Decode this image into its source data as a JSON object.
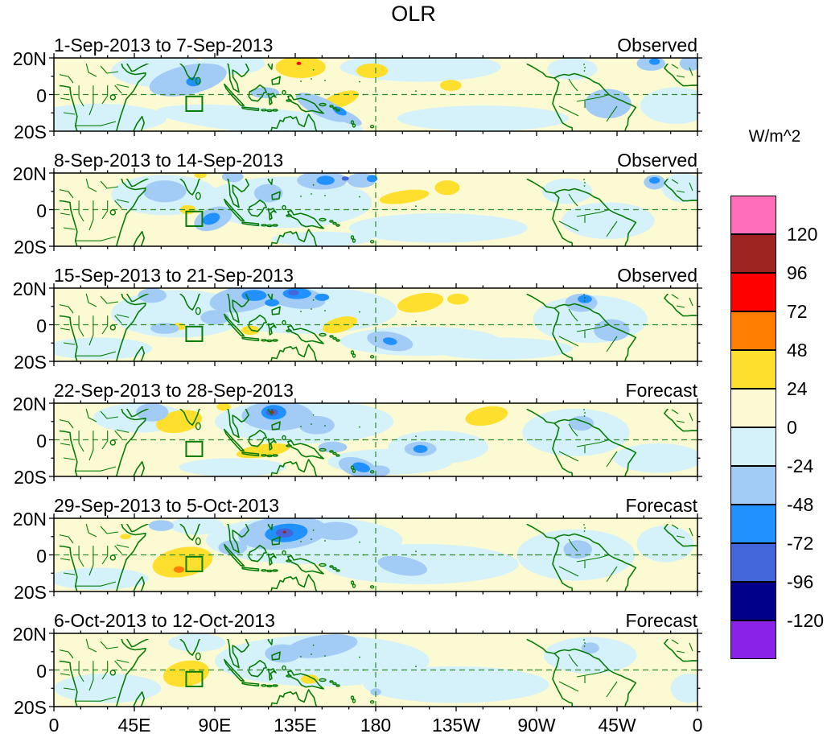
{
  "title": "OLR",
  "chart_data": {
    "type": "heatmap",
    "title": "OLR",
    "units": "W/m^2",
    "x_axis": {
      "ticks": [
        "0",
        "45E",
        "90E",
        "135E",
        "180",
        "135W",
        "90W",
        "45W",
        "0"
      ],
      "range_deg": [
        0,
        360
      ]
    },
    "y_axis": {
      "ticks": [
        "20N",
        "0",
        "20S"
      ],
      "range_deg": [
        20,
        -20
      ]
    },
    "colorbar": {
      "units": "W/m^2",
      "tick_labels": [
        "120",
        "96",
        "72",
        "48",
        "24",
        "0",
        "-24",
        "-48",
        "-72",
        "-96",
        "-120"
      ],
      "colors_top_to_bottom": [
        "#FF6EB8",
        "#9E2421",
        "#FF0000",
        "#FF7D00",
        "#FFDF2E",
        "#FBFAD2",
        "#D5F2FB",
        "#A2CBF6",
        "#2191FF",
        "#4366DB",
        "#00008B",
        "#8A22E8"
      ]
    },
    "level_colors": {
      "base": "#FBFAD2",
      "-1": "#D5F2FB",
      "-2": "#A2CBF6",
      "-3": "#2191FF",
      "-4": "#4366DB",
      "-5": "#00008B",
      "1": "#FFDF2E",
      "2": "#FF7D00",
      "3": "#FF0000",
      "4": "#9E2421"
    },
    "map_style": {
      "coastline_color": "#077c07",
      "gridline_color": "#2e8b2e"
    },
    "target_box": {
      "lon_min": 74,
      "lon_max": 83,
      "lat_min": -9,
      "lat_max": -1
    },
    "panels": [
      {
        "date_range": "1-Sep-2013 to 7-Sep-2013",
        "status": "Observed",
        "anomalies": [
          [
            25,
            -13,
            38,
            8,
            -1,
            0
          ],
          [
            115,
            -14,
            58,
            7,
            -1,
            5
          ],
          [
            240,
            -13,
            48,
            7,
            -1,
            0
          ],
          [
            205,
            15,
            45,
            8,
            -1,
            0
          ],
          [
            348,
            -6,
            20,
            10,
            -1,
            0
          ],
          [
            60,
            13,
            28,
            9,
            -1,
            0
          ],
          [
            100,
            17,
            18,
            6,
            -1,
            0
          ],
          [
            290,
            14,
            14,
            6,
            -1,
            0
          ],
          [
            138,
            15,
            14,
            6,
            1,
            0
          ],
          [
            160,
            -3,
            11,
            4,
            1,
            -20
          ],
          [
            178,
            13,
            9,
            4,
            1,
            0
          ],
          [
            222,
            5,
            6,
            3,
            1,
            0
          ],
          [
            75,
            8,
            22,
            8,
            -2,
            -12
          ],
          [
            150,
            -7,
            16,
            5,
            -2,
            25
          ],
          [
            163,
            -12,
            10,
            3,
            -2,
            25
          ],
          [
            310,
            -5,
            13,
            8,
            -2,
            0
          ],
          [
            334,
            17,
            8,
            4,
            -2,
            0
          ],
          [
            118,
            1,
            8,
            3,
            -2,
            0
          ],
          [
            356,
            17,
            6,
            4,
            -2,
            0
          ],
          [
            78,
            7,
            4,
            2.5,
            -3,
            0
          ],
          [
            160,
            -9,
            4,
            2,
            -3,
            25
          ],
          [
            336,
            18,
            3,
            1.8,
            -3,
            0
          ],
          [
            137,
            17,
            1.3,
            0.9,
            3,
            0
          ]
        ]
      },
      {
        "date_range": "8-Sep-2013 to 14-Sep-2013",
        "status": "Observed",
        "anomalies": [
          [
            62,
            8,
            30,
            11,
            -1,
            0
          ],
          [
            130,
            4,
            48,
            14,
            -1,
            0
          ],
          [
            215,
            -10,
            50,
            8,
            -1,
            0
          ],
          [
            310,
            -6,
            26,
            10,
            -1,
            0
          ],
          [
            352,
            12,
            12,
            8,
            -1,
            0
          ],
          [
            150,
            -16,
            28,
            4,
            -1,
            0
          ],
          [
            287,
            10,
            14,
            7,
            -1,
            0
          ],
          [
            75,
            0,
            4.5,
            2.5,
            1,
            0
          ],
          [
            196,
            7,
            14,
            3.5,
            1,
            -8
          ],
          [
            220,
            12,
            7,
            4,
            1,
            0
          ],
          [
            82,
            19,
            3.5,
            1.8,
            1,
            0
          ],
          [
            89,
            -5,
            11,
            6,
            -2,
            -20
          ],
          [
            62,
            10,
            12,
            6,
            -2,
            0
          ],
          [
            150,
            16,
            14,
            5,
            -2,
            0
          ],
          [
            172,
            16,
            8,
            4,
            -2,
            0
          ],
          [
            120,
            9,
            8,
            5,
            -2,
            0
          ],
          [
            336,
            15,
            6,
            4,
            -2,
            0
          ],
          [
            100,
            18,
            6,
            3,
            -2,
            0
          ],
          [
            88,
            -5,
            5,
            3,
            -3,
            -20
          ],
          [
            152,
            16,
            5,
            2.5,
            -3,
            0
          ],
          [
            178,
            17,
            3,
            2,
            -3,
            0
          ],
          [
            336,
            16,
            3,
            1.8,
            -3,
            0
          ],
          [
            163,
            17,
            2,
            1.2,
            -4,
            0
          ]
        ]
      },
      {
        "date_range": "15-Sep-2013 to 21-Sep-2013",
        "status": "Observed",
        "anomalies": [
          [
            70,
            6,
            38,
            13,
            -1,
            0
          ],
          [
            140,
            8,
            52,
            13,
            -1,
            0
          ],
          [
            205,
            -9,
            45,
            8,
            -1,
            0
          ],
          [
            300,
            3,
            32,
            13,
            -1,
            0
          ],
          [
            25,
            -13,
            30,
            6,
            -1,
            0
          ],
          [
            250,
            -13,
            40,
            6,
            -1,
            0
          ],
          [
            160,
            0,
            10,
            4,
            1,
            -15
          ],
          [
            205,
            12,
            13,
            5,
            1,
            -10
          ],
          [
            226,
            14,
            6,
            3,
            1,
            0
          ],
          [
            70,
            -1,
            4,
            2,
            1,
            0
          ],
          [
            110,
            -3,
            5,
            2.5,
            1,
            0
          ],
          [
            105,
            14,
            18,
            7,
            -2,
            -8
          ],
          [
            135,
            15,
            17,
            6,
            -2,
            8
          ],
          [
            90,
            4,
            8,
            4,
            -2,
            0
          ],
          [
            62,
            -2,
            8,
            3,
            -2,
            0
          ],
          [
            188,
            -9,
            13,
            5,
            -2,
            10
          ],
          [
            295,
            12,
            9,
            5,
            -2,
            0
          ],
          [
            312,
            -3,
            10,
            6,
            -2,
            0
          ],
          [
            55,
            16,
            8,
            4,
            -2,
            0
          ],
          [
            112,
            16,
            7,
            3,
            -3,
            0
          ],
          [
            136,
            17,
            8,
            3,
            -3,
            0
          ],
          [
            122,
            12,
            4,
            2,
            -3,
            0
          ],
          [
            150,
            15,
            4,
            2,
            -3,
            0
          ],
          [
            188,
            -9,
            4,
            2,
            -3,
            10
          ],
          [
            297,
            14,
            4,
            2.2,
            -3,
            0
          ],
          [
            134,
            17.5,
            3,
            1.5,
            -4,
            0
          ]
        ]
      },
      {
        "date_range": "22-Sep-2013 to 28-Sep-2013",
        "status": "Forecast",
        "anomalies": [
          [
            48,
            12,
            26,
            8,
            -1,
            0
          ],
          [
            140,
            10,
            50,
            12,
            -1,
            0
          ],
          [
            188,
            -12,
            35,
            7,
            -1,
            0
          ],
          [
            215,
            -4,
            28,
            9,
            -1,
            0
          ],
          [
            292,
            4,
            30,
            13,
            -1,
            0
          ],
          [
            338,
            -10,
            25,
            8,
            -1,
            0
          ],
          [
            100,
            -15,
            30,
            5,
            -1,
            0
          ],
          [
            70,
            10,
            13,
            6,
            1,
            -10
          ],
          [
            117,
            -6,
            15,
            3.5,
            1,
            -8
          ],
          [
            242,
            13,
            12,
            5,
            1,
            -10
          ],
          [
            95,
            18,
            4,
            2,
            1,
            0
          ],
          [
            125,
            13,
            20,
            8,
            -2,
            0
          ],
          [
            147,
            8,
            10,
            5,
            -2,
            0
          ],
          [
            170,
            -15,
            11,
            5,
            -2,
            15
          ],
          [
            156,
            -4,
            8,
            3,
            -2,
            0
          ],
          [
            205,
            -5,
            9,
            4,
            -2,
            0
          ],
          [
            295,
            9,
            7,
            4,
            -2,
            0
          ],
          [
            55,
            15,
            9,
            5,
            -2,
            0
          ],
          [
            182,
            -17,
            6,
            3,
            -2,
            0
          ],
          [
            123,
            15,
            7,
            4,
            -3,
            0
          ],
          [
            172,
            -15,
            5,
            2.5,
            -3,
            15
          ],
          [
            205,
            -5,
            4,
            2.2,
            -3,
            0
          ],
          [
            122,
            15,
            3.5,
            2,
            -4,
            0
          ],
          [
            122,
            15,
            1.2,
            0.8,
            3,
            0
          ]
        ]
      },
      {
        "date_range": "29-Sep-2013 to 5-Oct-2013",
        "status": "Forecast",
        "anomalies": [
          [
            140,
            8,
            55,
            13,
            -1,
            0
          ],
          [
            205,
            -5,
            55,
            11,
            -1,
            0
          ],
          [
            292,
            0,
            33,
            14,
            -1,
            0
          ],
          [
            25,
            -13,
            28,
            6,
            -1,
            0
          ],
          [
            342,
            6,
            16,
            10,
            -1,
            0
          ],
          [
            80,
            16,
            15,
            5,
            -1,
            0
          ],
          [
            72,
            -4,
            17,
            8,
            1,
            -10
          ],
          [
            40,
            10,
            3,
            1.5,
            1,
            0
          ],
          [
            128,
            12,
            25,
            9,
            -2,
            -5
          ],
          [
            158,
            13,
            12,
            5,
            -2,
            0
          ],
          [
            100,
            4,
            8,
            4,
            -2,
            0
          ],
          [
            195,
            -6,
            14,
            5,
            -2,
            10
          ],
          [
            293,
            3,
            8,
            5,
            -2,
            0
          ],
          [
            60,
            16,
            7,
            3,
            -2,
            0
          ],
          [
            130,
            12,
            12,
            5,
            -3,
            -5
          ],
          [
            129,
            12,
            5,
            2.5,
            -4,
            0
          ],
          [
            70,
            -8,
            3,
            1.8,
            2,
            0
          ],
          [
            129,
            12.5,
            1,
            0.7,
            4,
            0
          ]
        ]
      },
      {
        "date_range": "6-Oct-2013 to 12-Oct-2013",
        "status": "Forecast",
        "anomalies": [
          [
            150,
            5,
            60,
            14,
            -1,
            0
          ],
          [
            225,
            -8,
            52,
            10,
            -1,
            0
          ],
          [
            300,
            8,
            26,
            10,
            -1,
            0
          ],
          [
            30,
            -10,
            30,
            8,
            -1,
            0
          ],
          [
            80,
            15,
            16,
            5,
            -1,
            0
          ],
          [
            355,
            -10,
            10,
            8,
            -1,
            0
          ],
          [
            74,
            -2,
            13,
            7,
            1,
            -10
          ],
          [
            143,
            -5,
            5,
            2.5,
            1,
            0
          ],
          [
            150,
            13,
            20,
            6,
            -2,
            -8
          ],
          [
            128,
            9,
            10,
            5,
            -2,
            0
          ],
          [
            180,
            -12,
            3,
            2,
            -2,
            0
          ],
          [
            300,
            12,
            5,
            3,
            -2,
            0
          ]
        ]
      }
    ]
  }
}
